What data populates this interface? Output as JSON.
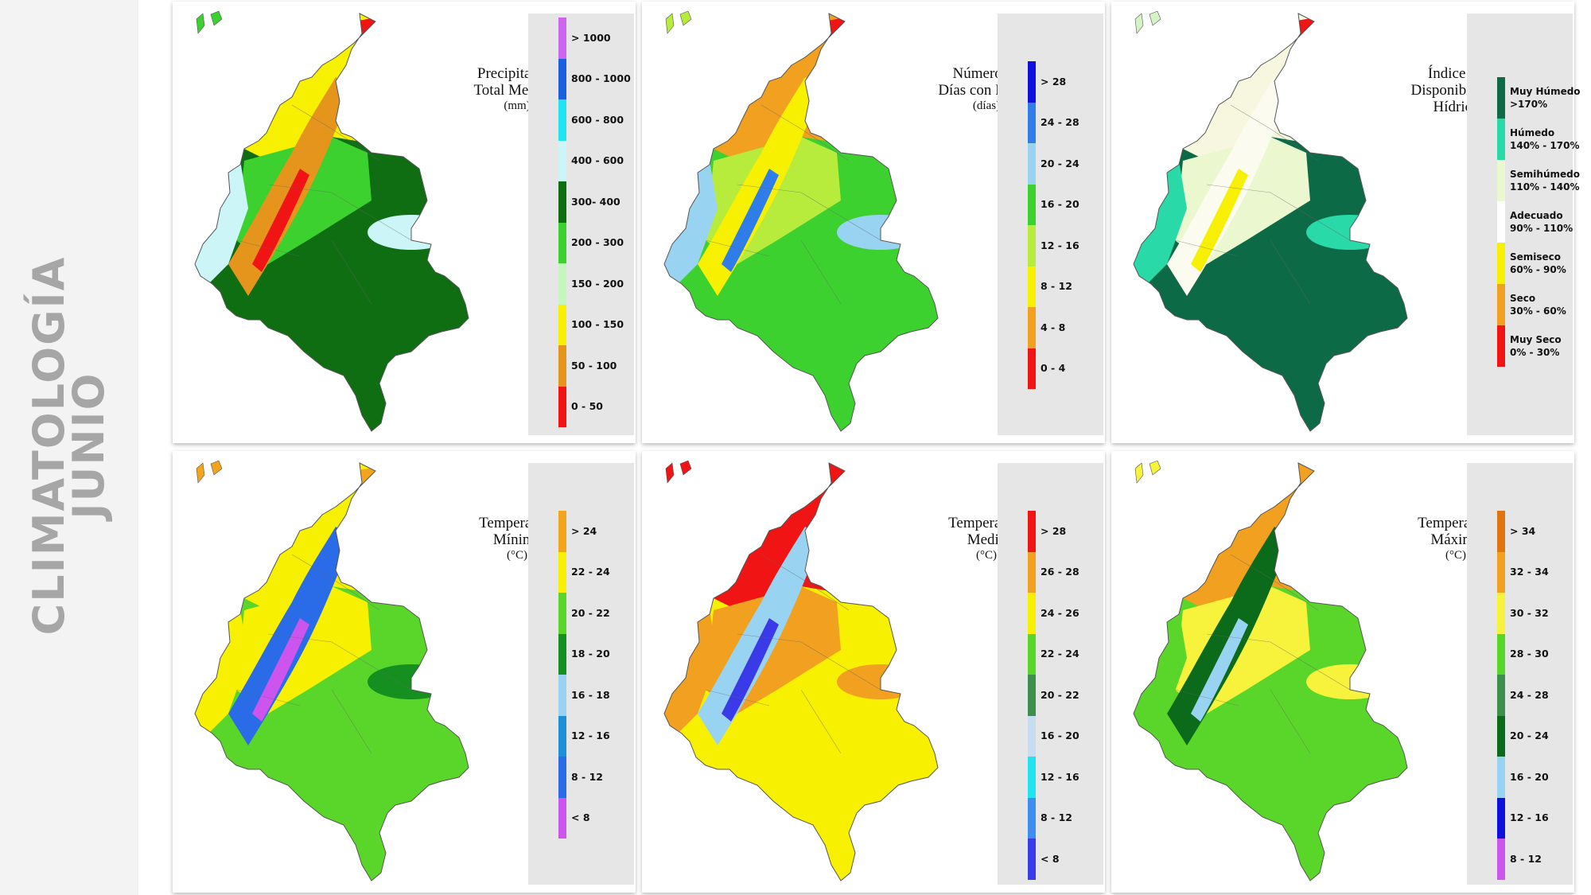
{
  "page": {
    "title_line1": "CLIMATOLOGÍA",
    "title_line2": "JUNIO"
  },
  "panels": [
    {
      "id": "precipitacion",
      "title_lines": [
        "Precipitación",
        "Total Mensual"
      ],
      "unit": "(mm)",
      "legend": [
        {
          "label": "> 1000",
          "color": "#cc66ee"
        },
        {
          "label": "800 - 1000",
          "color": "#1a5fdd"
        },
        {
          "label": "600 - 800",
          "color": "#22e3f0"
        },
        {
          "label": "400 - 600",
          "color": "#ccf5f8"
        },
        {
          "label": "300- 400",
          "color": "#0f6e12"
        },
        {
          "label": "200 - 300",
          "color": "#3cd12e"
        },
        {
          "label": "150 - 200",
          "color": "#c7f5c0"
        },
        {
          "label": "100 - 150",
          "color": "#f7f000"
        },
        {
          "label": "50 - 100",
          "color": "#e6951c"
        },
        {
          "label": "0 - 50",
          "color": "#f01414"
        }
      ],
      "map_colors": {
        "east": "#0f6e12",
        "island": "#3cd12e",
        "andes": "#e6951c",
        "andes_core": "#f01414",
        "north": "#f7f000",
        "pacific": "#ccf5f8",
        "mid": "#3cd12e",
        "light": "#ccf5f8",
        "tip": "#f01414"
      }
    },
    {
      "id": "dias-lluvia",
      "title_lines": [
        "Número de",
        "Días con Lluvia"
      ],
      "unit": "(días)",
      "legend": [
        {
          "label": "> 28",
          "color": "#1010dd"
        },
        {
          "label": "24 - 28",
          "color": "#2e7de8"
        },
        {
          "label": "20 - 24",
          "color": "#99d3f2"
        },
        {
          "label": "16 - 20",
          "color": "#3cd12e"
        },
        {
          "label": "12 - 16",
          "color": "#b7ec3c"
        },
        {
          "label": "8 - 12",
          "color": "#f7f000"
        },
        {
          "label": "4 - 8",
          "color": "#f2a020"
        },
        {
          "label": "0 - 4",
          "color": "#f01414"
        }
      ],
      "map_colors": {
        "east": "#3cd12e",
        "island": "#b7ec3c",
        "andes": "#f7f000",
        "andes_core": "#2e7de8",
        "north": "#f2a020",
        "pacific": "#99d3f2",
        "mid": "#b7ec3c",
        "light": "#99d3f2",
        "tip": "#f01414"
      }
    },
    {
      "id": "disponibilidad",
      "title_lines": [
        "Índice de",
        "Disponibilidad",
        "Hídrica"
      ],
      "unit": "",
      "legend": [
        {
          "label": "Muy Húmedo",
          "label2": ">170%",
          "color": "#0c6b46"
        },
        {
          "label": "Húmedo",
          "label2": "140% - 170%",
          "color": "#2ad9a8"
        },
        {
          "label": "Semihúmedo",
          "label2": "110% - 140%",
          "color": "#eaf7cf"
        },
        {
          "label": "Adecuado",
          "label2": "90% - 110%",
          "color": "#ffffff"
        },
        {
          "label": "Semiseco",
          "label2": "60% - 90%",
          "color": "#f7f000"
        },
        {
          "label": "Seco",
          "label2": "30% - 60%",
          "color": "#f2a020"
        },
        {
          "label": "Muy Seco",
          "label2": "0% - 30%",
          "color": "#f01414"
        }
      ],
      "map_colors": {
        "east": "#0c6b46",
        "island": "#d6f3c8",
        "andes": "#fbfbf0",
        "andes_core": "#f7f000",
        "north": "#f7f7e0",
        "pacific": "#2ad9a8",
        "mid": "#eaf7cf",
        "light": "#2ad9a8",
        "tip": "#f01414"
      }
    },
    {
      "id": "temp-minima",
      "title_lines": [
        "Temperatura",
        "Mínima"
      ],
      "unit": "(°C)",
      "legend": [
        {
          "label": "> 24",
          "color": "#f2a51c"
        },
        {
          "label": "22 - 24",
          "color": "#f7f000"
        },
        {
          "label": "20 - 22",
          "color": "#5ad62a"
        },
        {
          "label": "18 - 20",
          "color": "#159020"
        },
        {
          "label": "16 - 18",
          "color": "#99d3f2"
        },
        {
          "label": "12 - 16",
          "color": "#1e90d8"
        },
        {
          "label": "8 - 12",
          "color": "#2a6be8"
        },
        {
          "label": "< 8",
          "color": "#cc55ee"
        }
      ],
      "map_colors": {
        "east": "#5ad62a",
        "island": "#f2a51c",
        "andes": "#2a6be8",
        "andes_core": "#cc55ee",
        "north": "#f7f000",
        "pacific": "#f7f000",
        "mid": "#f7f000",
        "light": "#159020",
        "tip": "#f2a51c"
      }
    },
    {
      "id": "temp-media",
      "title_lines": [
        "Temperatura",
        "Media"
      ],
      "unit": "(°C)",
      "legend": [
        {
          "label": "> 28",
          "color": "#f01414"
        },
        {
          "label": "26 - 28",
          "color": "#f2a020"
        },
        {
          "label": "24 - 26",
          "color": "#f7f000"
        },
        {
          "label": "22 - 24",
          "color": "#5ad62a"
        },
        {
          "label": "20 - 22",
          "color": "#3e8f4e"
        },
        {
          "label": "16 - 20",
          "color": "#c8dcf2"
        },
        {
          "label": "12 - 16",
          "color": "#22e3f0"
        },
        {
          "label": "8 - 12",
          "color": "#3d8ef0"
        },
        {
          "label": "< 8",
          "color": "#3a3ae8"
        }
      ],
      "map_colors": {
        "east": "#f7f000",
        "island": "#f01414",
        "andes": "#99d3f2",
        "andes_core": "#3a3ae8",
        "north": "#f01414",
        "pacific": "#f2a020",
        "mid": "#f2a020",
        "light": "#f2a020",
        "tip": "#f01414"
      }
    },
    {
      "id": "temp-maxima",
      "title_lines": [
        "Temperatura",
        "Máxima"
      ],
      "unit": "(°C)",
      "legend": [
        {
          "label": "> 34",
          "color": "#e07410"
        },
        {
          "label": "32 - 34",
          "color": "#f2a020"
        },
        {
          "label": "30 - 32",
          "color": "#f7f23c"
        },
        {
          "label": "28 - 30",
          "color": "#5ad62a"
        },
        {
          "label": "24 - 28",
          "color": "#3e8f4e"
        },
        {
          "label": "20 - 24",
          "color": "#0c6b1a"
        },
        {
          "label": "16 - 20",
          "color": "#99d3f2"
        },
        {
          "label": "12 - 16",
          "color": "#1010dd"
        },
        {
          "label": "8 - 12",
          "color": "#cc55ee"
        }
      ],
      "map_colors": {
        "east": "#5ad62a",
        "island": "#f7f23c",
        "andes": "#0c6b1a",
        "andes_core": "#99d3f2",
        "north": "#f2a020",
        "pacific": "#5ad62a",
        "mid": "#f7f23c",
        "light": "#f7f23c",
        "tip": "#f2a020"
      }
    }
  ]
}
